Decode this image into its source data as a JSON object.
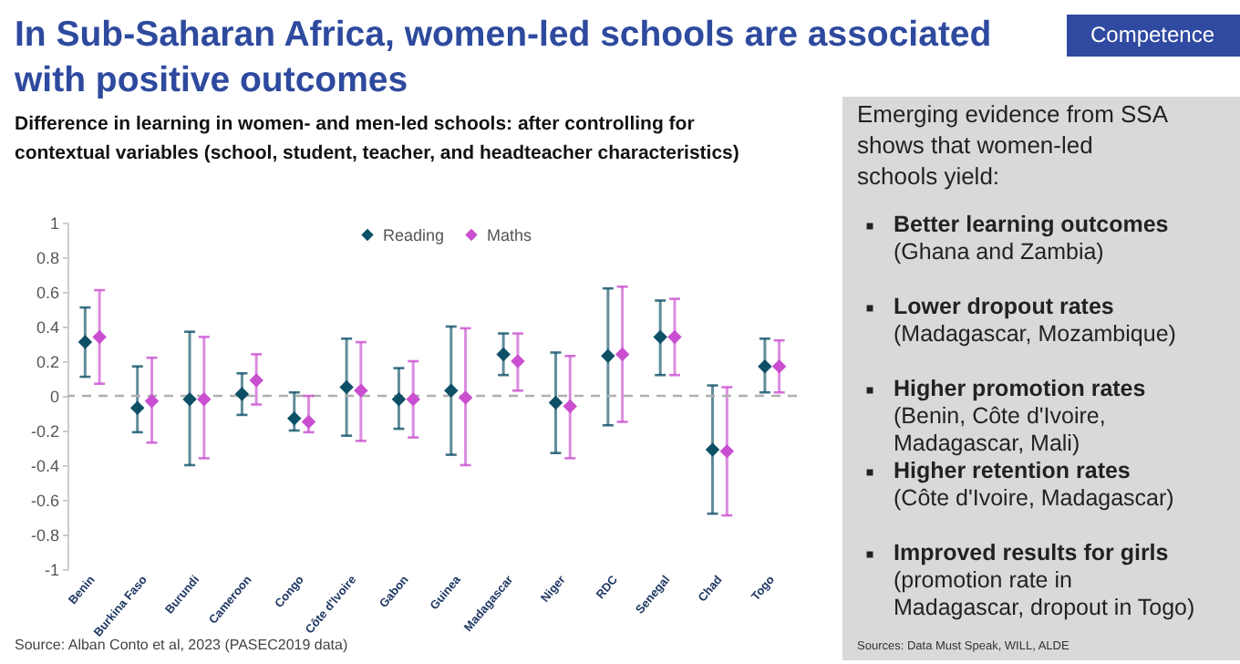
{
  "chart_data": [
    {
      "type": "scatter",
      "title": "In Sub-Saharan Africa, women-led schools are associated with positive outcomes",
      "subtitle": "Difference in learning in women- and men-led schools: after controlling for contextual variables (school, student, teacher, and headteacher characteristics)",
      "categories": [
        "Benin",
        "Burkina Faso",
        "Burundi",
        "Cameroon",
        "Congo",
        "Côte d'Ivoire",
        "Gabon",
        "Guinea",
        "Madagascar",
        "Niger",
        "RDC",
        "Senegal",
        "Chad",
        "Togo"
      ],
      "series": [
        {
          "name": "Reading",
          "color": "#0d5066",
          "values": [
            0.31,
            -0.07,
            -0.02,
            0.01,
            -0.13,
            0.05,
            -0.02,
            0.03,
            0.24,
            -0.04,
            0.23,
            0.34,
            -0.31,
            0.17
          ],
          "errors": [
            [
              0.11,
              0.51
            ],
            [
              -0.21,
              0.17
            ],
            [
              -0.4,
              0.37
            ],
            [
              -0.11,
              0.13
            ],
            [
              -0.2,
              0.02
            ],
            [
              -0.23,
              0.33
            ],
            [
              -0.19,
              0.16
            ],
            [
              -0.34,
              0.4
            ],
            [
              0.12,
              0.36
            ],
            [
              -0.33,
              0.25
            ],
            [
              -0.17,
              0.62
            ],
            [
              0.12,
              0.55
            ],
            [
              -0.68,
              0.06
            ],
            [
              0.02,
              0.33
            ]
          ]
        },
        {
          "name": "Maths",
          "color": "#c94fd0",
          "values": [
            0.34,
            -0.03,
            -0.02,
            0.09,
            -0.15,
            0.03,
            -0.02,
            -0.01,
            0.2,
            -0.06,
            0.24,
            0.34,
            -0.32,
            0.17
          ],
          "errors": [
            [
              0.07,
              0.61
            ],
            [
              -0.27,
              0.22
            ],
            [
              -0.36,
              0.34
            ],
            [
              -0.05,
              0.24
            ],
            [
              -0.21,
              0.0
            ],
            [
              -0.26,
              0.31
            ],
            [
              -0.24,
              0.2
            ],
            [
              -0.4,
              0.39
            ],
            [
              0.03,
              0.36
            ],
            [
              -0.36,
              0.23
            ],
            [
              -0.15,
              0.63
            ],
            [
              0.12,
              0.56
            ],
            [
              -0.69,
              0.05
            ],
            [
              0.02,
              0.32
            ]
          ]
        }
      ],
      "ylim": [
        -1,
        1
      ],
      "yticks": [
        -1,
        -0.8,
        -0.6,
        -0.4,
        -0.2,
        0,
        0.2,
        0.4,
        0.6,
        0.8,
        1
      ],
      "grid": false,
      "marker": "diamond",
      "legend": "top",
      "ref_lines": [
        {
          "axis": "y",
          "value": 0,
          "color": "#b0b0b0",
          "line_style": "dashed"
        }
      ],
      "annotations": [
        "Source: Alban Conto et al, 2023 (PASEC2019 data)"
      ]
    },
    {
      "type": "other",
      "annotations": [
        "Competence",
        "Emerging evidence from SSA shows that women-led schools yield:",
        "Better learning outcomes",
        "(Ghana and Zambia)",
        "Lower dropout rates",
        "(Madagascar, Mozambique)",
        "Higher promotion rates",
        "(Benin, Côte d'Ivoire, Madagascar, Mali)",
        "Higher retention rates",
        "(Côte d'Ivoire, Madagascar)",
        "Improved results for girls",
        "(promotion rate in Madagascar, dropout in Togo)",
        "Sources: Data Must Speak, WILL, ALDE"
      ]
    }
  ]
}
